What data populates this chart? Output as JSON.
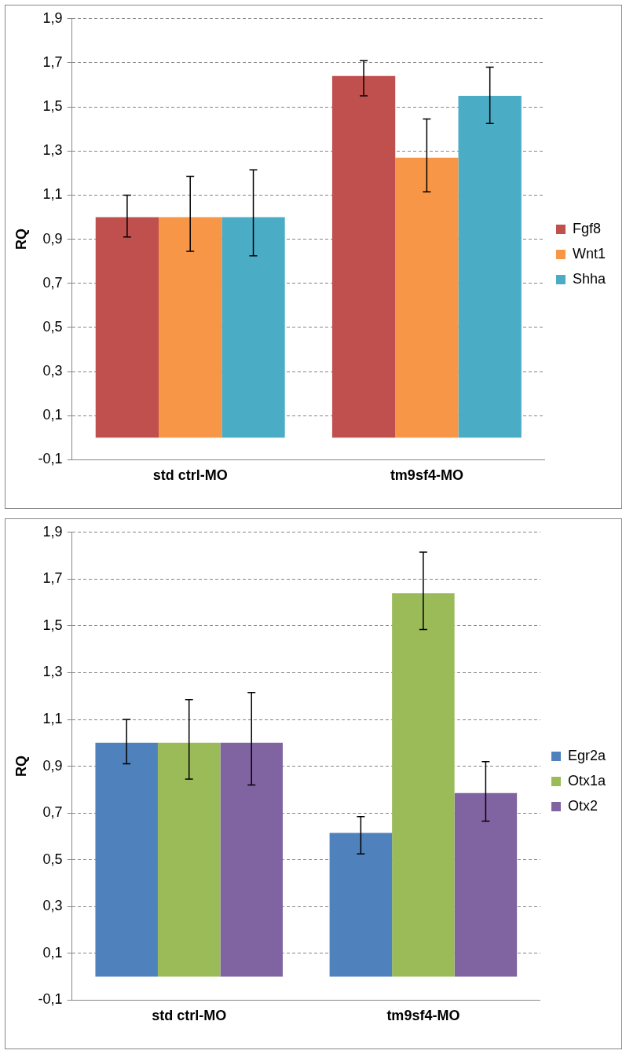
{
  "chart_data": [
    {
      "type": "bar",
      "ylabel": "RQ",
      "categories": [
        "std ctrl-MO",
        "tm9sf4-MO"
      ],
      "series": [
        {
          "name": "Fgf8",
          "color": "#c0504d",
          "values": [
            1.0,
            1.64
          ],
          "errors": [
            [
              0.91,
              1.1
            ],
            [
              1.55,
              1.71
            ]
          ]
        },
        {
          "name": "Wnt1",
          "color": "#f79646",
          "values": [
            1.0,
            1.27
          ],
          "errors": [
            [
              0.845,
              1.185
            ],
            [
              1.115,
              1.445
            ]
          ]
        },
        {
          "name": "Shha",
          "color": "#4bacc6",
          "values": [
            1.0,
            1.55
          ],
          "errors": [
            [
              0.825,
              1.215
            ],
            [
              1.425,
              1.68
            ]
          ]
        }
      ],
      "ylim": [
        -0.1,
        1.9
      ],
      "yticks": [
        {
          "value": -0.1,
          "label": "-0,1"
        },
        {
          "value": 0.1,
          "label": "0,1"
        },
        {
          "value": 0.3,
          "label": "0,3"
        },
        {
          "value": 0.5,
          "label": "0,5"
        },
        {
          "value": 0.7,
          "label": "0,7"
        },
        {
          "value": 0.9,
          "label": "0,9"
        },
        {
          "value": 1.1,
          "label": "1,1"
        },
        {
          "value": 1.3,
          "label": "1,3"
        },
        {
          "value": 1.5,
          "label": "1,5"
        },
        {
          "value": 1.7,
          "label": "1,7"
        },
        {
          "value": 1.9,
          "label": "1,9"
        }
      ],
      "grid": "y",
      "legend": "right"
    },
    {
      "type": "bar",
      "ylabel": "RQ",
      "categories": [
        "std ctrl-MO",
        "tm9sf4-MO"
      ],
      "series": [
        {
          "name": "Egr2a",
          "color": "#4f81bd",
          "values": [
            1.0,
            0.615
          ],
          "errors": [
            [
              0.91,
              1.1
            ],
            [
              0.525,
              0.685
            ]
          ]
        },
        {
          "name": "Otx1a",
          "color": "#9bbb59",
          "values": [
            1.0,
            1.64
          ],
          "errors": [
            [
              0.845,
              1.185
            ],
            [
              1.485,
              1.815
            ]
          ]
        },
        {
          "name": "Otx2",
          "color": "#8064a2",
          "values": [
            1.0,
            0.785
          ],
          "errors": [
            [
              0.82,
              1.215
            ],
            [
              0.665,
              0.92
            ]
          ]
        }
      ],
      "ylim": [
        -0.1,
        1.9
      ],
      "yticks": [
        {
          "value": -0.1,
          "label": "-0,1"
        },
        {
          "value": 0.1,
          "label": "0,1"
        },
        {
          "value": 0.3,
          "label": "0,3"
        },
        {
          "value": 0.5,
          "label": "0,5"
        },
        {
          "value": 0.7,
          "label": "0,7"
        },
        {
          "value": 0.9,
          "label": "0,9"
        },
        {
          "value": 1.1,
          "label": "1,1"
        },
        {
          "value": 1.3,
          "label": "1,3"
        },
        {
          "value": 1.5,
          "label": "1,5"
        },
        {
          "value": 1.7,
          "label": "1,7"
        },
        {
          "value": 1.9,
          "label": "1,9"
        }
      ],
      "grid": "y",
      "legend": "right"
    }
  ]
}
